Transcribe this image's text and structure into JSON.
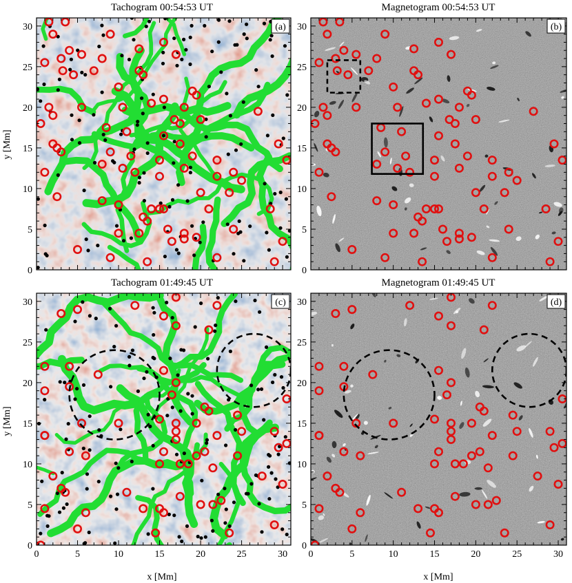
{
  "panels": [
    {
      "id": "a",
      "title": "Tachogram 00:54:53 UT",
      "label": "(a)",
      "kind": "tacho",
      "seed": 11
    },
    {
      "id": "b",
      "title": "Magnetogram 00:54:53 UT",
      "label": "(b)",
      "kind": "magneto",
      "seed": 23
    },
    {
      "id": "c",
      "title": "Tachogram 01:49:45 UT",
      "label": "(c)",
      "kind": "tacho",
      "seed": 37
    },
    {
      "id": "d",
      "title": "Magnetogram 01:49:45 UT",
      "label": "(d)",
      "kind": "magneto",
      "seed": 53
    }
  ],
  "axes": {
    "xlabel": "x [Mm]",
    "ylabel": "y [Mm]",
    "range": [
      0,
      31
    ],
    "ticks": [
      "0",
      "5",
      "10",
      "15",
      "20",
      "25",
      "30"
    ]
  },
  "colors": {
    "network": "#22dd33",
    "ring": "#e01010",
    "dots": "#000000",
    "tacho_red": "#b8301c",
    "tacho_blue": "#2a5a9a",
    "magneto_gray": "#808080"
  },
  "chart_data": {
    "type": "scatter",
    "title": "",
    "xlabel": "x [Mm]",
    "ylabel": "y [Mm]",
    "xlim": [
      0,
      31
    ],
    "ylim": [
      0,
      31
    ],
    "rings_frame1": [
      [
        1.5,
        30.5
      ],
      [
        3.5,
        30.5
      ],
      [
        2.0,
        29.0
      ],
      [
        4.0,
        27.0
      ],
      [
        5.5,
        26.5
      ],
      [
        1.0,
        25.5
      ],
      [
        3.0,
        26.0
      ],
      [
        3.2,
        24.5
      ],
      [
        4.5,
        24.0
      ],
      [
        8.0,
        26.0
      ],
      [
        9.0,
        29.0
      ],
      [
        12.5,
        27.2
      ],
      [
        12.5,
        24.5
      ],
      [
        15.5,
        28.0
      ],
      [
        17.0,
        26.5
      ],
      [
        13.0,
        24.0
      ],
      [
        7.0,
        24.5
      ],
      [
        10.0,
        22.5
      ],
      [
        15.5,
        21.0
      ],
      [
        18.0,
        20.0
      ],
      [
        19.5,
        21.5
      ],
      [
        19.0,
        22.0
      ],
      [
        1.5,
        20.0
      ],
      [
        2.0,
        19.0
      ],
      [
        5.5,
        20.0
      ],
      [
        10.5,
        20.0
      ],
      [
        14.0,
        20.5
      ],
      [
        11.0,
        17.0
      ],
      [
        15.5,
        16.5
      ],
      [
        17.5,
        18.0
      ],
      [
        20.0,
        18.5
      ],
      [
        16.8,
        18.5
      ],
      [
        27.0,
        19.5
      ],
      [
        0.5,
        18.0
      ],
      [
        2.0,
        15.5
      ],
      [
        2.5,
        15.0
      ],
      [
        3.0,
        14.5
      ],
      [
        8.5,
        17.5
      ],
      [
        9.0,
        14.5
      ],
      [
        11.5,
        14.0
      ],
      [
        15.0,
        13.5
      ],
      [
        17.5,
        15.5
      ],
      [
        19.0,
        14.0
      ],
      [
        22.0,
        13.5
      ],
      [
        24.0,
        12.0
      ],
      [
        29.5,
        15.5
      ],
      [
        30.5,
        13.5
      ],
      [
        1.0,
        12.0
      ],
      [
        8.0,
        13.0
      ],
      [
        10.5,
        12.5
      ],
      [
        12.0,
        12.0
      ],
      [
        15.0,
        11.5
      ],
      [
        18.0,
        12.5
      ],
      [
        22.0,
        11.5
      ],
      [
        25.0,
        11.0
      ],
      [
        2.5,
        9.0
      ],
      [
        8.0,
        8.5
      ],
      [
        10.0,
        8.0
      ],
      [
        14.0,
        7.5
      ],
      [
        15.0,
        7.5
      ],
      [
        20.0,
        9.5
      ],
      [
        23.5,
        9.5
      ],
      [
        28.5,
        7.5
      ],
      [
        30.0,
        3.5
      ],
      [
        13.0,
        6.5
      ],
      [
        13.5,
        6.0
      ],
      [
        15.5,
        7.5
      ],
      [
        21.0,
        7.5
      ],
      [
        16.0,
        5.0
      ],
      [
        18.0,
        4.5
      ],
      [
        19.5,
        4.0
      ],
      [
        24.0,
        5.0
      ],
      [
        10.0,
        4.5
      ],
      [
        12.5,
        4.5
      ],
      [
        18.0,
        3.8
      ],
      [
        9.0,
        1.5
      ],
      [
        5.0,
        2.5
      ],
      [
        16.5,
        3.5
      ],
      [
        22.0,
        1.5
      ],
      [
        13.5,
        1.0
      ],
      [
        29.0,
        1.0
      ]
    ],
    "rings_frame2": [
      [
        3.0,
        28.5
      ],
      [
        5.0,
        29.0
      ],
      [
        12.0,
        29.5
      ],
      [
        17.0,
        30.5
      ],
      [
        22.0,
        29.5
      ],
      [
        17.0,
        27.0
      ],
      [
        21.0,
        26.5
      ],
      [
        15.5,
        28.2
      ],
      [
        1.0,
        22.0
      ],
      [
        4.0,
        22.0
      ],
      [
        7.5,
        21.0
      ],
      [
        15.5,
        21.5
      ],
      [
        1.0,
        19.0
      ],
      [
        4.0,
        19.5
      ],
      [
        17.0,
        20.0
      ],
      [
        16.5,
        18.5
      ],
      [
        21.0,
        16.5
      ],
      [
        20.5,
        17.0
      ],
      [
        30.5,
        18.0
      ],
      [
        15.0,
        15.5
      ],
      [
        10.0,
        15.0
      ],
      [
        17.0,
        15.0
      ],
      [
        19.5,
        15.0
      ],
      [
        24.5,
        16.0
      ],
      [
        1.0,
        13.5
      ],
      [
        5.5,
        15.0
      ],
      [
        17.0,
        14.0
      ],
      [
        22.0,
        13.5
      ],
      [
        25.0,
        14.0
      ],
      [
        29.0,
        14.0
      ],
      [
        30.5,
        12.5
      ],
      [
        4.0,
        11.5
      ],
      [
        6.0,
        11.0
      ],
      [
        15.5,
        11.5
      ],
      [
        17.0,
        13.0
      ],
      [
        19.5,
        11.0
      ],
      [
        20.5,
        11.5
      ],
      [
        24.5,
        11.0
      ],
      [
        29.5,
        12.0
      ],
      [
        1.0,
        13.5
      ],
      [
        2.0,
        8.5
      ],
      [
        3.0,
        7.0
      ],
      [
        3.5,
        6.5
      ],
      [
        15.0,
        10.0
      ],
      [
        17.5,
        10.0
      ],
      [
        18.5,
        10.0
      ],
      [
        21.5,
        9.5
      ],
      [
        27.5,
        8.5
      ],
      [
        30.0,
        7.5
      ],
      [
        1.0,
        4.5
      ],
      [
        6.0,
        4.0
      ],
      [
        11.0,
        6.5
      ],
      [
        13.0,
        4.5
      ],
      [
        15.0,
        4.5
      ],
      [
        15.5,
        4.0
      ],
      [
        17.5,
        6.0
      ],
      [
        20.0,
        5.0
      ],
      [
        21.5,
        5.0
      ],
      [
        22.5,
        5.5
      ],
      [
        5.0,
        2.0
      ],
      [
        14.5,
        1.5
      ],
      [
        23.5,
        1.5
      ],
      [
        29.0,
        2.5
      ],
      [
        0.5,
        0.0
      ]
    ],
    "selection_boxes_b": [
      {
        "x0": 2.0,
        "y0": 21.8,
        "x1": 6.0,
        "y1": 25.8,
        "style": "dashed"
      },
      {
        "x0": 7.4,
        "y0": 11.8,
        "x1": 13.6,
        "y1": 18.0,
        "style": "solid"
      }
    ],
    "dashed_circles_frame2": [
      {
        "cx": 9.5,
        "cy": 18.5,
        "r": 5.5
      },
      {
        "cx": 26.5,
        "cy": 21.5,
        "r": 4.5
      }
    ]
  }
}
